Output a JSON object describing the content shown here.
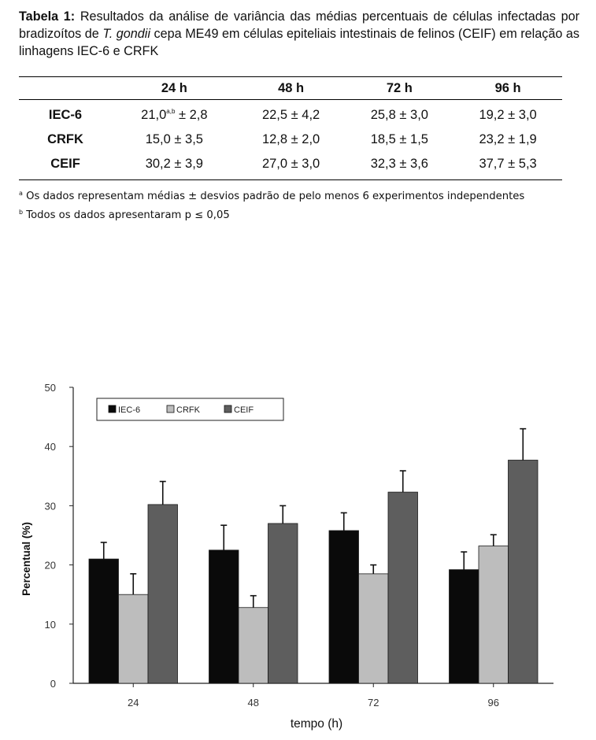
{
  "caption": {
    "label": "Tabela 1:",
    "text_before": " Resultados da análise de variância das médias percentuais de células infectadas por bradizoítos de ",
    "species": "T. gondii",
    "text_after": " cepa ME49 em células epiteliais intestinais de felinos (CEIF) em relação as linhagens IEC-6 e CRFK"
  },
  "table": {
    "columns": [
      "",
      "24 h",
      "48 h",
      "72 h",
      "96 h"
    ],
    "rows": [
      {
        "label": "IEC-6",
        "cells": [
          "21,0",
          "22,5 ± 4,2",
          "25,8 ± 3,0",
          "19,2 ± 3,0"
        ],
        "first_sup": "a,b",
        "first_suffix": " ± 2,8"
      },
      {
        "label": "CRFK",
        "cells": [
          "15,0 ± 3,5",
          "12,8 ± 2,0",
          "18,5 ± 1,5",
          "23,2 ± 1,9"
        ]
      },
      {
        "label": "CEIF",
        "cells": [
          "30,2 ± 3,9",
          "27,0 ± 3,0",
          "32,3 ± 3,6",
          "37,7 ± 5,3"
        ]
      }
    ]
  },
  "notes": [
    {
      "mark": "a",
      "text": "Os dados representam médias ± desvios padrão de pelo menos 6 experimentos independentes"
    },
    {
      "mark": "b",
      "text": "Todos os dados apresentaram p ≤ 0,05"
    }
  ],
  "chart_data": {
    "type": "bar",
    "categories": [
      "24",
      "48",
      "72",
      "96"
    ],
    "series": [
      {
        "name": "IEC-6",
        "color": "#0a0a0a",
        "values": [
          21.0,
          22.5,
          25.8,
          19.2
        ],
        "errors": [
          2.8,
          4.2,
          3.0,
          3.0
        ]
      },
      {
        "name": "CRFK",
        "color": "#bdbdbd",
        "values": [
          15.0,
          12.8,
          18.5,
          23.2
        ],
        "errors": [
          3.5,
          2.0,
          1.5,
          1.9
        ]
      },
      {
        "name": "CEIF",
        "color": "#5e5e5e",
        "values": [
          30.2,
          27.0,
          32.3,
          37.7
        ],
        "errors": [
          3.9,
          3.0,
          3.6,
          5.3
        ]
      }
    ],
    "xlabel": "tempo (h)",
    "ylabel": "Percentual (%)",
    "ylim": [
      0,
      50
    ],
    "yticks": [
      "0",
      "10",
      "20",
      "30",
      "40",
      "50"
    ],
    "grid": false,
    "legend_position": "top-left"
  }
}
